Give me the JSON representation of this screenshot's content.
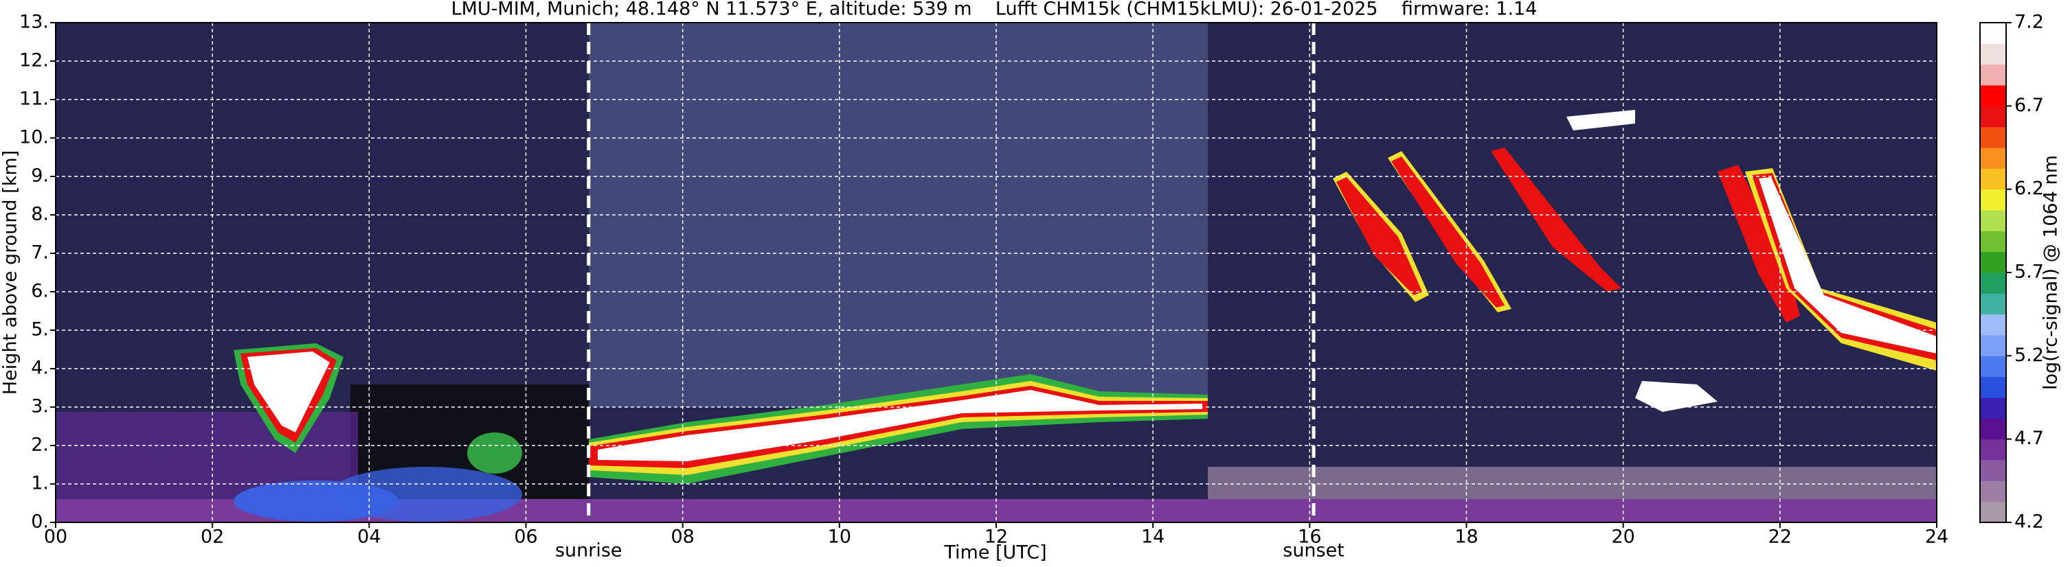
{
  "chart_data": {
    "type": "heatmap",
    "title": "LMU-MIM, Munich; 48.148° N 11.573° E, altitude: 539 m    Lufft CHM15k (CHM15kLMU): 26-01-2025    firmware: 1.14",
    "xlabel": "Time [UTC]",
    "ylabel": "Height above ground [km]",
    "xlim": [
      0,
      24
    ],
    "xticks": [
      {
        "value": 0,
        "label": "00"
      },
      {
        "value": 2,
        "label": "02"
      },
      {
        "value": 4,
        "label": "04"
      },
      {
        "value": 6,
        "label": "06"
      },
      {
        "value": 8,
        "label": "08"
      },
      {
        "value": 10,
        "label": "10"
      },
      {
        "value": 12,
        "label": "12"
      },
      {
        "value": 14,
        "label": "14"
      },
      {
        "value": 16,
        "label": "16"
      },
      {
        "value": 18,
        "label": "18"
      },
      {
        "value": 20,
        "label": "20"
      },
      {
        "value": 22,
        "label": "22"
      },
      {
        "value": 24,
        "label": "24"
      }
    ],
    "ylim": [
      0,
      13
    ],
    "yticks": [
      {
        "value": 0,
        "label": "0."
      },
      {
        "value": 1,
        "label": "1."
      },
      {
        "value": 2,
        "label": "2."
      },
      {
        "value": 3,
        "label": "3."
      },
      {
        "value": 4,
        "label": "4."
      },
      {
        "value": 5,
        "label": "5."
      },
      {
        "value": 6,
        "label": "6."
      },
      {
        "value": 7,
        "label": "7."
      },
      {
        "value": 8,
        "label": "8."
      },
      {
        "value": 9,
        "label": "9."
      },
      {
        "value": 10,
        "label": "10."
      },
      {
        "value": 11,
        "label": "11."
      },
      {
        "value": 12,
        "label": "12."
      },
      {
        "value": 13,
        "label": "13."
      }
    ],
    "grid": true,
    "annotations": [
      {
        "text": "sunrise",
        "x": 6.8
      },
      {
        "text": "sunset",
        "x": 16.05
      }
    ],
    "colorbar": {
      "label": "log(rc-signal) @ 1064 nm",
      "lim": [
        4.2,
        7.2
      ],
      "ticks": [
        4.2,
        4.7,
        5.2,
        5.7,
        6.2,
        6.7,
        7.2
      ],
      "colors": [
        "#a89aa8",
        "#9d7fa6",
        "#8a5aa0",
        "#75309a",
        "#5a1090",
        "#3a20b0",
        "#2a50e0",
        "#4a7cf0",
        "#7aa0f8",
        "#a0bcf8",
        "#40b0a0",
        "#20a060",
        "#30a020",
        "#70c030",
        "#b0e050",
        "#f0f030",
        "#f8c020",
        "#f89020",
        "#f05010",
        "#e81010",
        "#ff0000",
        "#f0b0b0",
        "#f0e0e0",
        "#ffffff"
      ]
    }
  }
}
